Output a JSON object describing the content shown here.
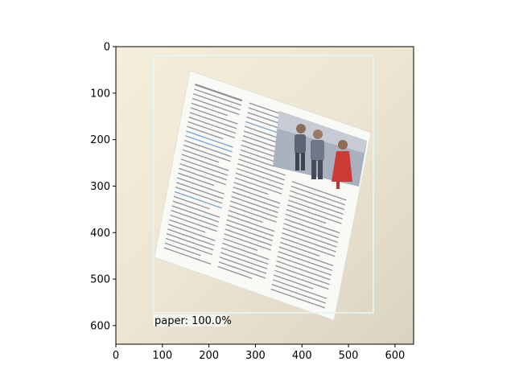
{
  "axes": {
    "x_ticks": [
      "0",
      "100",
      "200",
      "300",
      "400",
      "500",
      "600"
    ],
    "y_ticks": [
      "0",
      "100",
      "200",
      "300",
      "400",
      "500",
      "600"
    ],
    "x_range": [
      0,
      640
    ],
    "y_range": [
      640,
      0
    ]
  },
  "detection": {
    "label": "paper: 100.0%",
    "class": "paper",
    "score_percent": 100.0,
    "box": {
      "x_min": 82,
      "y_min": 20,
      "x_max": 555,
      "y_max": 575
    },
    "box_color": "#e6f6f6"
  },
  "colors": {
    "background_wall": "#eee7d3",
    "paper": "#f4f4ef",
    "text_gray": "#6b6f78",
    "text_blue": "#4a86c5",
    "photo_bg": "#a9b0bd"
  },
  "photo": {
    "icon": "people-photo"
  }
}
